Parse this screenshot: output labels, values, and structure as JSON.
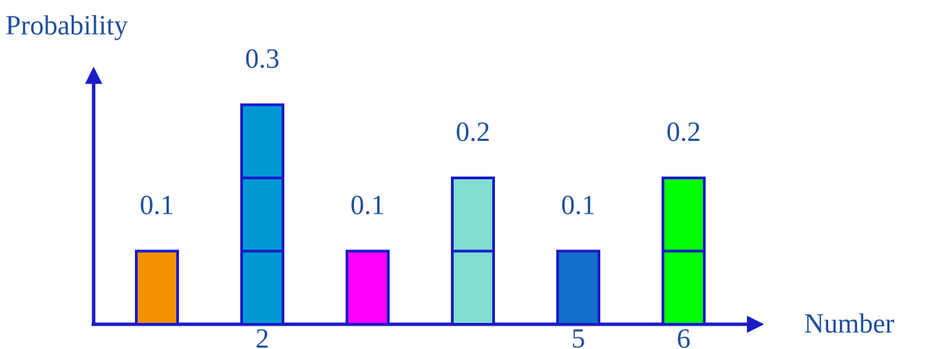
{
  "chart_data": {
    "type": "bar",
    "xlabel": "Number",
    "ylabel": "Probability",
    "categories": [
      "",
      "2",
      "",
      "",
      "5",
      "6"
    ],
    "values": [
      0.1,
      0.3,
      0.1,
      0.2,
      0.1,
      0.2
    ],
    "value_labels": [
      "0.1",
      "0.3",
      "0.1",
      "0.2",
      "0.1",
      "0.2"
    ],
    "block_unit": 0.1,
    "bar_colors": [
      "#f39200",
      "#0099d4",
      "#ff00ff",
      "#80dfd0",
      "#1470c8",
      "#00ff00"
    ],
    "bar_border_color": "#1b1bc8",
    "axis_color": "#1b1bc8",
    "text_color": "#1f4e9c",
    "grid": false,
    "legend": "none"
  }
}
